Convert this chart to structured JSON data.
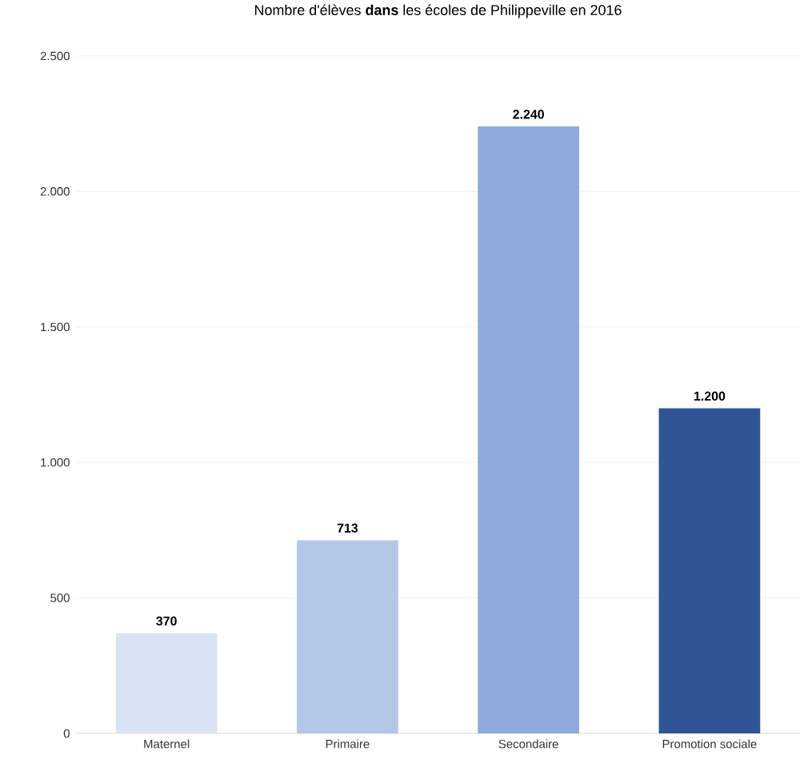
{
  "chart_data": {
    "type": "bar",
    "title": "Nombre d'élèves **dans** les écoles de Philippeville en 2016",
    "categories": [
      "Maternel",
      "Primaire",
      "Secondaire",
      "Promotion sociale"
    ],
    "values": [
      370,
      713,
      2240,
      1200
    ],
    "colors": [
      "#dae3f3",
      "#b4c7e7",
      "#8faadc",
      "#2f5597"
    ],
    "value_labels": [
      "370",
      "713",
      "2.240",
      "1.200"
    ],
    "ylim": [
      0,
      2500
    ],
    "yticks": [
      0,
      500,
      {
        "value": 1000,
        "label": "1.000"
      },
      {
        "value": 1500,
        "label": "1.500"
      },
      {
        "value": 2000,
        "label": "2.000"
      },
      {
        "value": 2500,
        "label": "2.500"
      }
    ],
    "grid": "y"
  }
}
